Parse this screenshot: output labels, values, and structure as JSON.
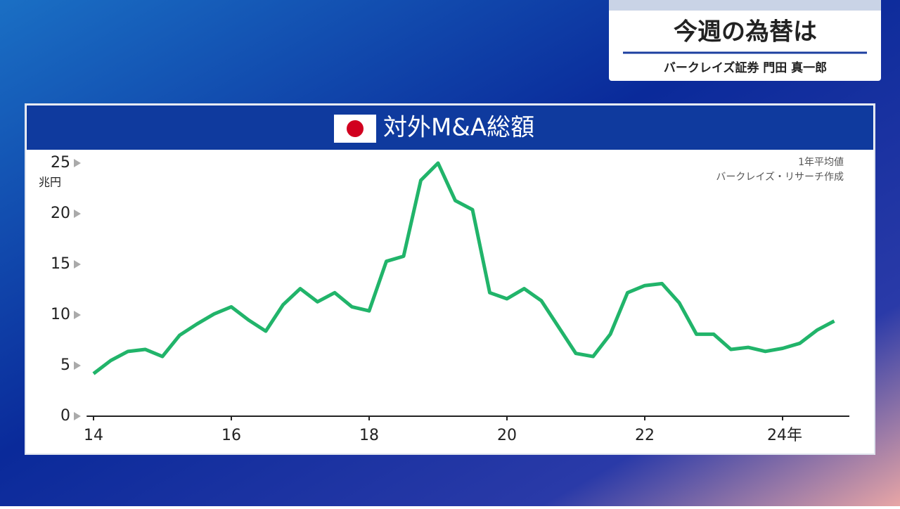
{
  "header": {
    "title": "今週の為替は",
    "subtitle": "バークレイズ証券 門田 真一郎"
  },
  "chart_data": {
    "type": "line",
    "title": "対外M&A総額",
    "y_label": "兆円",
    "annotations": [
      "1年平均値",
      "バークレイズ・リサーチ作成"
    ],
    "x": [
      14.0,
      14.25,
      14.5,
      14.75,
      15.0,
      15.25,
      15.5,
      15.75,
      16.0,
      16.25,
      16.5,
      16.75,
      17.0,
      17.25,
      17.5,
      17.75,
      18.0,
      18.25,
      18.5,
      18.75,
      19.0,
      19.25,
      19.5,
      19.75,
      20.0,
      20.25,
      20.5,
      20.75,
      21.0,
      21.25,
      21.5,
      21.75,
      22.0,
      22.25,
      22.5,
      22.75,
      23.0,
      23.25,
      23.5,
      23.75,
      24.0,
      24.25,
      24.5,
      24.75
    ],
    "series": [
      {
        "color": "#21b46a",
        "values": [
          4.2,
          5.5,
          6.4,
          6.6,
          5.9,
          8.0,
          9.1,
          10.1,
          10.8,
          9.5,
          8.4,
          11.0,
          12.6,
          11.3,
          12.2,
          10.8,
          10.4,
          15.3,
          15.8,
          23.3,
          25.0,
          21.3,
          20.4,
          12.2,
          11.6,
          12.6,
          11.4,
          8.8,
          6.2,
          5.9,
          8.1,
          12.2,
          12.9,
          13.1,
          11.2,
          8.1,
          8.1,
          6.6,
          6.8,
          6.4,
          6.7,
          7.2,
          8.5,
          9.4
        ]
      }
    ],
    "xlim": [
      13.9,
      25.0
    ],
    "ylim": [
      0,
      25
    ],
    "xticks": [
      14,
      16,
      18,
      20,
      22,
      {
        "value": 24,
        "label": "24年"
      }
    ],
    "yticks": [
      0,
      5,
      10,
      15,
      20,
      25
    ]
  }
}
